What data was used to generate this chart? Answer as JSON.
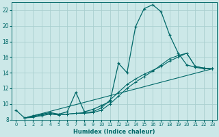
{
  "xlabel": "Humidex (Indice chaleur)",
  "bg_color": "#cce8e8",
  "grid_color": "#aacfcf",
  "line_color": "#006868",
  "xlim": [
    -0.5,
    23.5
  ],
  "ylim": [
    8,
    23
  ],
  "yticks": [
    8,
    10,
    12,
    14,
    16,
    18,
    20,
    22
  ],
  "xticks": [
    0,
    1,
    2,
    3,
    4,
    5,
    6,
    7,
    8,
    9,
    10,
    11,
    12,
    13,
    14,
    15,
    16,
    17,
    18,
    19,
    20,
    21,
    22,
    23
  ],
  "line1_x": [
    0,
    1,
    2,
    3,
    4,
    5,
    6,
    7,
    8,
    9,
    10,
    11,
    12,
    13,
    14,
    15,
    16,
    17,
    18,
    19,
    20,
    21,
    22,
    23
  ],
  "line1_y": [
    9.2,
    8.2,
    8.5,
    8.7,
    8.9,
    8.7,
    9.0,
    11.5,
    9.0,
    9.3,
    9.8,
    10.3,
    15.2,
    14.0,
    19.9,
    22.2,
    22.7,
    21.8,
    18.8,
    16.5,
    15.0,
    14.7,
    14.5,
    14.5
  ],
  "line2_x": [
    1,
    2,
    3,
    4,
    5,
    6,
    7,
    8,
    9,
    10,
    11,
    12,
    13,
    14,
    15,
    16,
    17,
    18,
    19,
    20,
    21,
    22,
    23
  ],
  "line2_y": [
    8.2,
    8.4,
    8.6,
    8.8,
    8.6,
    8.7,
    8.8,
    8.8,
    8.9,
    9.2,
    10.0,
    11.0,
    12.0,
    12.8,
    13.5,
    14.2,
    15.0,
    15.8,
    16.2,
    16.5,
    14.8,
    14.6,
    14.5
  ],
  "line3_x": [
    1,
    23
  ],
  "line3_y": [
    8.2,
    14.5
  ],
  "line4_x": [
    1,
    2,
    3,
    4,
    5,
    6,
    7,
    8,
    9,
    10,
    11,
    12,
    13,
    14,
    15,
    16,
    17,
    18,
    19,
    20,
    21,
    22,
    23
  ],
  "line4_y": [
    8.2,
    8.3,
    8.5,
    8.7,
    8.6,
    8.7,
    8.8,
    8.9,
    9.0,
    9.5,
    10.5,
    11.5,
    12.5,
    13.2,
    13.8,
    14.3,
    14.8,
    15.5,
    16.0,
    16.5,
    14.8,
    14.6,
    14.5
  ]
}
